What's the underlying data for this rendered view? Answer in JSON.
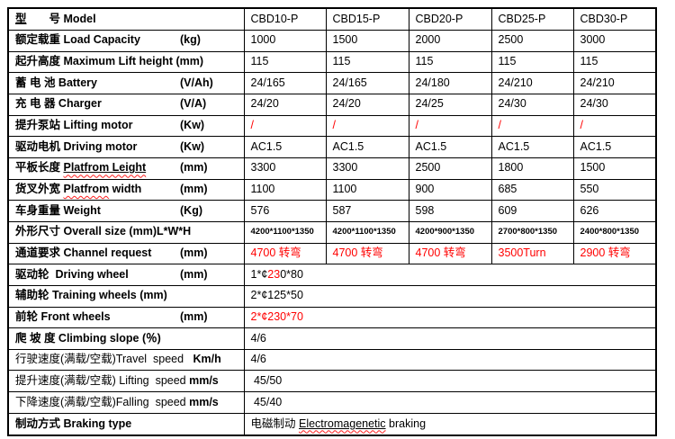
{
  "colors": {
    "text": "#000000",
    "highlight_red": "#ff0000",
    "border": "#000000",
    "spellcheck_squiggle": "#ff2020"
  },
  "table": {
    "columns": [
      "model-col-1",
      "model-col-2",
      "model-col-3",
      "model-col-4",
      "model-col-5"
    ],
    "rows": [
      {
        "name": "model",
        "label": [
          {
            "t": "型",
            "u": 1
          },
          {
            "t": "　　号 Model"
          }
        ],
        "unit": "",
        "values": [
          "CBD10-P",
          "CBD15-P",
          "CBD20-P",
          "CBD25-P",
          "CBD30-P"
        ]
      },
      {
        "name": "load-capacity",
        "label": [
          {
            "t": "额定载重 Load Capacity"
          }
        ],
        "unit": "(kg)",
        "values": [
          "1000",
          "1500",
          "2000",
          "2500",
          "3000"
        ]
      },
      {
        "name": "max-lift-height",
        "label": [
          {
            "t": "起升高度 Maximum Lift height (mm)"
          }
        ],
        "unit": "",
        "values": [
          "115",
          "115",
          "115",
          "115",
          "115"
        ]
      },
      {
        "name": "battery",
        "label": [
          {
            "t": "蓄 电 池 Battery"
          }
        ],
        "unit": "(V/Ah)",
        "values": [
          "24/165",
          "24/165",
          "24/180",
          "24/210",
          "24/210"
        ]
      },
      {
        "name": "charger",
        "label": [
          {
            "t": "充 电 器 Charger"
          }
        ],
        "unit": "(V/A)",
        "values": [
          "24/20",
          "24/20",
          "24/25",
          "24/30",
          "24/30"
        ]
      },
      {
        "name": "lifting-motor",
        "label": [
          {
            "t": "提升泵站 Lifting motor"
          }
        ],
        "unit": "(Kw)",
        "value_color": "red",
        "values": [
          "/",
          "/",
          "/",
          "/",
          "/"
        ]
      },
      {
        "name": "driving-motor",
        "label": [
          {
            "t": "驱动电机 Driving motor"
          }
        ],
        "unit": "(Kw)",
        "values": [
          "AC1.5",
          "AC1.5",
          "AC1.5",
          "AC1.5",
          "AC1.5"
        ]
      },
      {
        "name": "platform-length",
        "label": [
          {
            "t": "平板长度 "
          },
          {
            "t": "Platfrom Leight",
            "u": 1,
            "m": 1
          }
        ],
        "unit": "(mm)",
        "values": [
          "3300",
          "3300",
          "2500",
          "1800",
          "1500"
        ]
      },
      {
        "name": "platform-width",
        "label": [
          {
            "t": "货叉外宽 "
          },
          {
            "t": "Platfrom",
            "m": 1
          },
          {
            "t": " width"
          }
        ],
        "unit": "(mm)",
        "values": [
          "1100",
          "1100",
          "900",
          "685",
          "550"
        ]
      },
      {
        "name": "weight",
        "label": [
          {
            "t": "车身重量 Weight"
          }
        ],
        "unit": "(Kg)",
        "values": [
          "576",
          "587",
          "598",
          "609",
          "626"
        ]
      },
      {
        "name": "overall-size",
        "label": [
          {
            "t": "外形尺寸 Overall size (mm)L*W*H"
          }
        ],
        "unit": "",
        "value_small": true,
        "values": [
          "4200*1100*1350",
          "4200*1100*1350",
          "4200*900*1350",
          "2700*800*1350",
          "2400*800*1350"
        ]
      },
      {
        "name": "channel-request",
        "label": [
          {
            "t": "通道要求 Channel request"
          }
        ],
        "unit": "(mm)",
        "value_color": "red",
        "values": [
          "4700 转弯",
          "4700 转弯",
          "4700 转弯",
          "3500Turn",
          "2900 转弯"
        ]
      },
      {
        "name": "driving-wheel",
        "label": [
          {
            "t": "驱动轮  Driving wheel"
          }
        ],
        "unit": "(mm)",
        "value_segments": [
          {
            "t": "1*¢"
          },
          {
            "t": "23",
            "c": "red"
          },
          {
            "t": "0*80"
          }
        ]
      },
      {
        "name": "training-wheels",
        "label": [
          {
            "t": "辅助轮 Training wheels (mm)"
          }
        ],
        "unit": "",
        "value_segments": [
          {
            "t": "2*¢125*50"
          }
        ]
      },
      {
        "name": "front-wheels",
        "label": [
          {
            "t": "前轮 Front wheels"
          }
        ],
        "unit": "(mm)",
        "value_segments": [
          {
            "t": "2*¢230*70",
            "c": "red"
          }
        ]
      },
      {
        "name": "climbing-slope",
        "label": [
          {
            "t": "爬 坡 度 Climbing slope (％)"
          }
        ],
        "unit": "",
        "value_segments": [
          {
            "t": "4/6"
          }
        ]
      },
      {
        "name": "travel-speed",
        "label": [
          {
            "t": "行驶速度(满载/空载)Travel  speed",
            "nb": 1
          },
          {
            "t": "   Km/h"
          }
        ],
        "unit": "",
        "value_segments": [
          {
            "t": "4/6"
          }
        ]
      },
      {
        "name": "lifting-speed",
        "label": [
          {
            "t": "提升速度(满载/空载) Lifting  speed ",
            "nb": 1
          },
          {
            "t": "mm/s"
          }
        ],
        "unit": "",
        "value_segments": [
          {
            "t": " 45/50"
          }
        ]
      },
      {
        "name": "falling-speed",
        "label": [
          {
            "t": "下降速度(满载/空载)Falling  speed ",
            "nb": 1
          },
          {
            "t": "mm/s"
          }
        ],
        "unit": "",
        "value_segments": [
          {
            "t": " 45/40"
          }
        ]
      },
      {
        "name": "braking-type",
        "label": [
          {
            "t": "制动方式 Braking type"
          }
        ],
        "unit": "",
        "value_bold": true,
        "value_segments": [
          {
            "t": "电磁制动 "
          },
          {
            "t": "Electromagenetic",
            "u": 1,
            "m": 1
          },
          {
            "t": " braking"
          }
        ]
      }
    ]
  }
}
